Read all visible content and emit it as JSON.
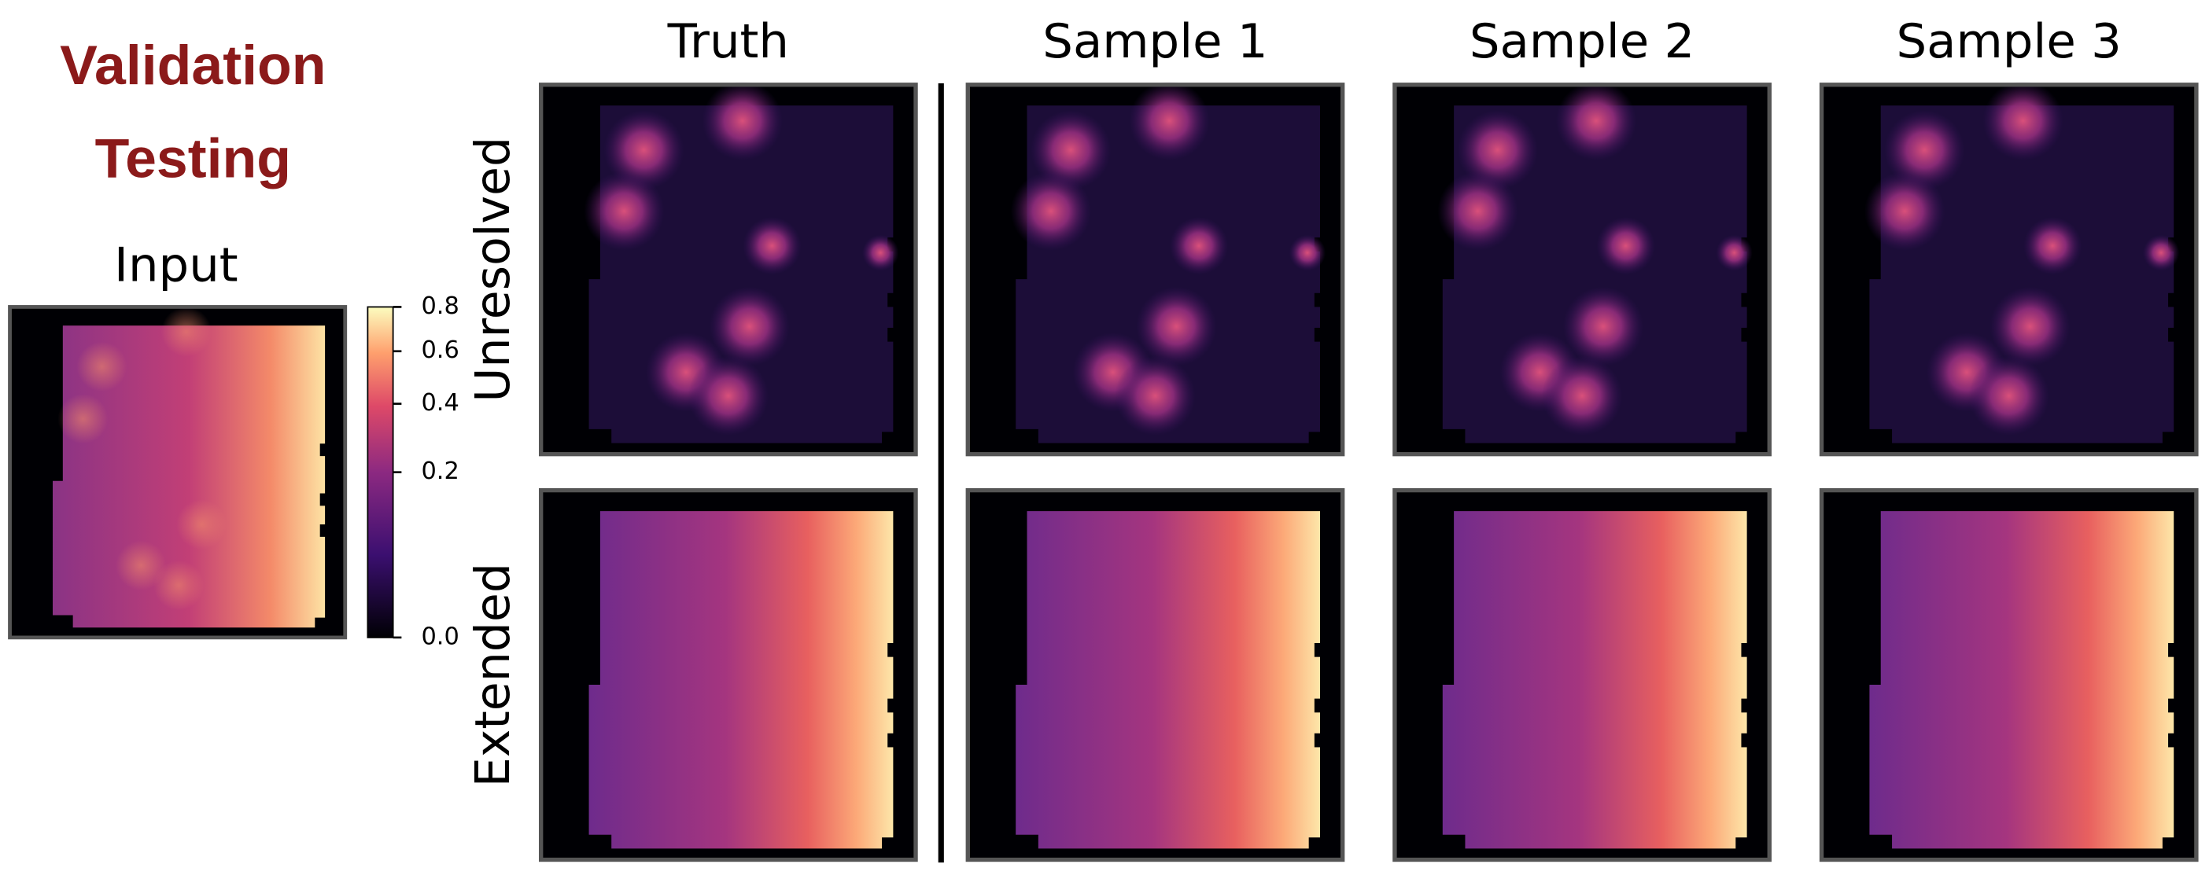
{
  "header": {
    "title_lines": [
      "Validation",
      "Testing"
    ]
  },
  "input": {
    "label": "Input"
  },
  "colorbar": {
    "scale": "sqrt",
    "lim": [
      0,
      0.8
    ],
    "ticks": [
      {
        "value": 0,
        "label": "0.0"
      },
      0.2,
      0.4,
      0.6,
      0.8
    ]
  },
  "columns": [
    "Truth",
    "Sample 1",
    "Sample 2",
    "Sample 3"
  ],
  "rows": [
    "Unresolved",
    "Extended"
  ]
}
